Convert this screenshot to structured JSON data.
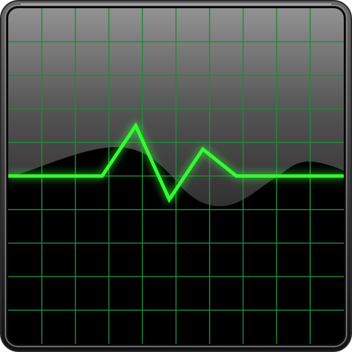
{
  "icon": {
    "name": "system-monitor-icon",
    "depicts": "oscilloscope-screen",
    "colors": {
      "frame_outer": "#5c5c5c",
      "frame_inner": "#1a1a1a",
      "screen": "#000000",
      "glare_top": "#8a8a8a",
      "grid": "#1f8a3a",
      "trace": "#33ff33",
      "trace_glow": "#00ff44"
    }
  },
  "waveform": {
    "type": "line",
    "grid_divisions": 10,
    "y_range": [
      -1,
      1
    ],
    "x": [
      0.0,
      0.28,
      0.38,
      0.48,
      0.58,
      0.68,
      1.0
    ],
    "y": [
      0.0,
      0.0,
      0.6,
      -0.28,
      0.32,
      0.0,
      0.0
    ]
  }
}
